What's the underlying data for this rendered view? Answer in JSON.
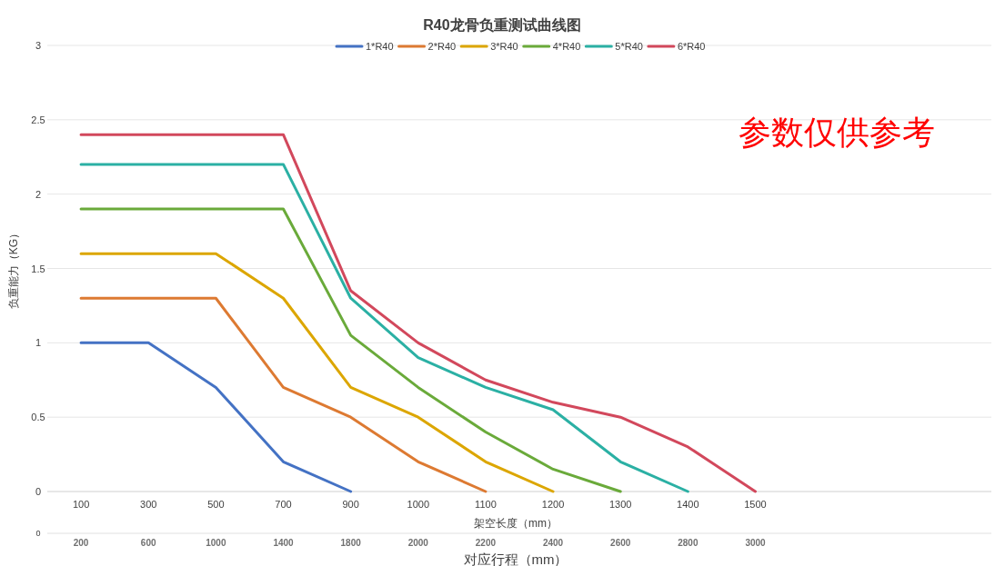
{
  "chart_data": {
    "type": "line",
    "title": "R40龙骨负重测试曲线图",
    "xlabel": "架空长度（mm）",
    "ylabel": "负重能力（KG）",
    "categories": [
      "100",
      "300",
      "500",
      "700",
      "900",
      "1000",
      "1100",
      "1200",
      "1300",
      "1400",
      "1500",
      null,
      null,
      null
    ],
    "series": [
      {
        "name": "1*R40",
        "color": "#4472c4",
        "values": [
          1,
          1,
          0.7,
          0.2,
          0,
          null,
          null,
          null,
          null,
          null,
          null,
          null,
          null,
          null
        ]
      },
      {
        "name": "2*R40",
        "color": "#dd7a32",
        "values": [
          1.3,
          1.3,
          1.3,
          0.7,
          0.5,
          0.2,
          0,
          null,
          null,
          null,
          null,
          null,
          null,
          null
        ]
      },
      {
        "name": "3*R40",
        "color": "#dca600",
        "values": [
          1.6,
          1.6,
          1.6,
          1.3,
          0.7,
          0.5,
          0.2,
          0,
          null,
          null,
          null,
          null,
          null,
          null
        ]
      },
      {
        "name": "4*R40",
        "color": "#6aaa3a",
        "values": [
          1.9,
          1.9,
          1.9,
          1.9,
          1.05,
          0.7,
          0.4,
          0.15,
          0,
          null,
          null,
          null,
          null,
          null
        ]
      },
      {
        "name": "5*R40",
        "color": "#2bb0a4",
        "values": [
          2.2,
          2.2,
          2.2,
          2.2,
          1.3,
          0.9,
          0.7,
          0.55,
          0.2,
          0,
          null,
          null,
          null,
          null
        ]
      },
      {
        "name": "6*R40",
        "color": "#d2485c",
        "values": [
          2.4,
          2.4,
          2.4,
          2.4,
          1.35,
          1,
          0.75,
          0.6,
          0.5,
          0.3,
          0,
          null,
          null,
          null
        ]
      }
    ],
    "ylim": [
      0,
      3
    ],
    "yticks": [
      0,
      0.5,
      1,
      1.5,
      2,
      2.5,
      3
    ],
    "grid": "y",
    "legend": "top",
    "annotations": [
      "参数仅供参考",
      "0",
      "200",
      "600",
      "1000",
      "1400",
      "1800",
      "2000",
      "2200",
      "2400",
      "2600",
      "2800",
      "3000",
      "对应行程（mm）"
    ]
  }
}
